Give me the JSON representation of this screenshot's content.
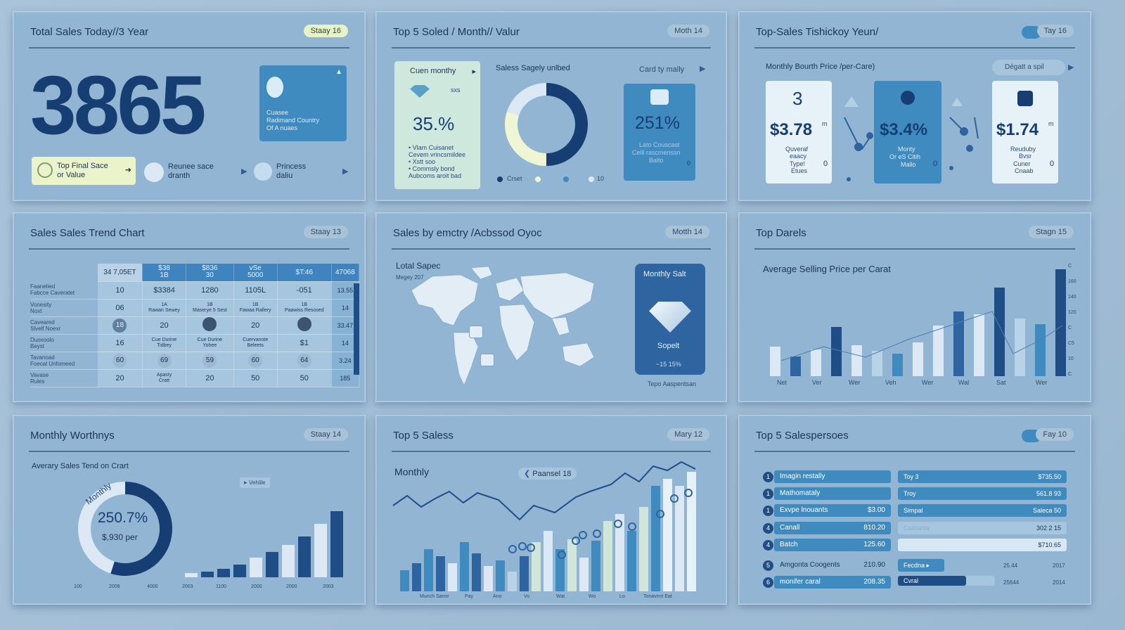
{
  "p1": {
    "title": "Total Sales Today//3 Year",
    "badge": "Staay 16",
    "big_number": "3865",
    "side_card_text": "Cuasee\nRadimand Country\nOf A nuaes",
    "pills": [
      {
        "label": "Top Final Sace\nor Value"
      },
      {
        "label": "Reunee sace\ndranth"
      },
      {
        "label": "Princess\ndaliu"
      }
    ]
  },
  "p2": {
    "title": "Top 5 Soled / Month// Valur",
    "badge": "Moth 14",
    "left_card_title": "Cuen monthy",
    "left_card_mini": "sxs",
    "left_card_value": "35.%",
    "left_card_lines": [
      "• Vlam Cuisanet",
      "Cevem vrincsmildee",
      "• Xstt soo",
      "• Commsly bond",
      "Aubcoms aroit bad"
    ],
    "donut_title": "Saless Sagely unlbed",
    "donut_fractions": [
      0.5,
      0.3,
      0.2
    ],
    "legend": [
      "Crset",
      "",
      "",
      "10"
    ],
    "right_label": "Card ty mally",
    "right_card_value": "251%",
    "right_card_lines": [
      "Lato Couscast",
      "Celll rascmenssn",
      "Balto"
    ],
    "right_card_num": "0"
  },
  "p3": {
    "title": "Top-Sales Tishickoy Yeun/",
    "badge": "Tay 16",
    "subtitle": "Monthly Bourth Price /per-Care)",
    "button": "Dégatt a spil",
    "cards": [
      {
        "top": "3",
        "value": "$3.78",
        "sup": "m",
        "lines": [
          "Quveraf",
          "eaacy",
          "Type!",
          "Etues"
        ],
        "num": "0"
      },
      {
        "top": "",
        "value": "$3.4%",
        "sup": "",
        "lines": [
          "Monty",
          "Or eS Citih",
          "Mallo"
        ],
        "num": "0"
      },
      {
        "top": "",
        "value": "$1.74",
        "sup": "m",
        "lines": [
          "Reuduby",
          "Bvsr",
          "Cuner",
          "Cnaab"
        ],
        "num": "0"
      }
    ]
  },
  "p4": {
    "title": "Sales Sales Trend Chart",
    "badge": "Staay 13",
    "headers": [
      "34 7,05ET",
      "$38\n1B",
      "$836\n30",
      "vSe\n5000",
      "$T:46",
      "47068"
    ],
    "rows": [
      {
        "label": "Faanelied\nFabcce Caveratet",
        "cells": [
          "10",
          "$3384",
          "1280",
          "1105L",
          "-051",
          "13.55"
        ]
      },
      {
        "label": "Vonesity\nNoxt",
        "cells": [
          "06",
          "1A\nRawan Sewey",
          "1B\nMaserye 5 Sest",
          "1B\nFawaa Rallery",
          "1B\nPaawiss Resosed",
          "14"
        ]
      },
      {
        "label": "Caveared\nSlvelf Noexr",
        "cells": [
          "18",
          "20",
          "",
          "20",
          "",
          "33.47"
        ]
      },
      {
        "label": "Duoxoolo\nBeyst",
        "cells": [
          "16",
          "Cue Durine\nTidbey",
          "Cue Durine\nYohee",
          "Cuervanote\nBeleets",
          "$1",
          "14"
        ]
      },
      {
        "label": "Tavanoad\nFoecal Unfomeed",
        "cells": [
          "60",
          "69",
          "59",
          "60",
          "64",
          "3.24"
        ]
      },
      {
        "label": "Vavase\nRules",
        "cells": [
          "20",
          "Apasty\nCratt",
          "20",
          "50",
          "50",
          "185"
        ]
      }
    ]
  },
  "p5": {
    "title": "Sales by emctry /Acbssod Oyoc",
    "badge": "Motth 14",
    "map_title": "Lotal Sapec",
    "map_sub": "Megey 207",
    "card_title": "Monthly Salt",
    "card_label": "Sopelt",
    "card_value": "~15 15%",
    "footer": "Tepo Aaspentsan"
  },
  "p6": {
    "title": "Top Darels",
    "badge": "Stagn 15",
    "chart_title": "Average Selling Price per Carat",
    "x_labels": [
      "Net",
      "Ver",
      "Wer",
      "Veh",
      "Wer",
      "Wal",
      "Sat",
      "Wer"
    ],
    "y_labels": [
      "C",
      "160",
      "140",
      "120",
      "C",
      "C5",
      "10",
      "C"
    ]
  },
  "p7": {
    "title": "Monthly Worthnys",
    "badge": "Staay 14",
    "chart_title": "Averary Sales Tend on Crart",
    "donut_arc_label": "Monthly",
    "donut_value": "250.7%",
    "donut_sub": "$,930 per",
    "donut_fraction": 0.55,
    "legend_tag": "Vehlile",
    "x_labels": [
      "100",
      "2008",
      "4000",
      "2003",
      "1100",
      "2000",
      "2000",
      "2003"
    ]
  },
  "p8": {
    "title": "Top 5 Saless",
    "badge": "Mary 12",
    "chart_label": "Monthly",
    "tag": "Paansel 18",
    "x_labels": [
      "Munch Sanor",
      "Pay",
      "Ano",
      "Vo",
      "Wat",
      "Wo",
      "Lo",
      "Tonavent Eat"
    ]
  },
  "p9": {
    "title": "Top 5 Salespersoes",
    "badge": "Fay 10",
    "left_rows": [
      {
        "n": "1",
        "name": "Imagin restally",
        "val": ""
      },
      {
        "n": "1",
        "name": "Mathomataly",
        "val": ""
      },
      {
        "n": "1",
        "name": "Exvpe lnouants",
        "val": "$3.00"
      },
      {
        "n": "4",
        "name": "Canall",
        "val": "810.20"
      },
      {
        "n": "4",
        "name": "Batch",
        "val": "125.60"
      },
      {
        "n": "5",
        "name": "Amgonta Coogents",
        "val": "210.90"
      },
      {
        "n": "6",
        "name": "monifer caral",
        "val": "208.35"
      }
    ],
    "right_rows": [
      {
        "name": "Toy 3",
        "val": "$735.50"
      },
      {
        "name": "Troy",
        "val": "561.8 93"
      },
      {
        "name": "Simpal",
        "val": "Saleca 50"
      },
      {
        "name": "Caatanta",
        "val": "302 2 15"
      },
      {
        "name": "",
        "val": "$710.65"
      },
      {
        "name": "Fecdna ▸",
        "mid": "25.44",
        "val": "2017"
      },
      {
        "name": "Cvral",
        "mid": "25644",
        "val": "2014"
      }
    ]
  }
}
